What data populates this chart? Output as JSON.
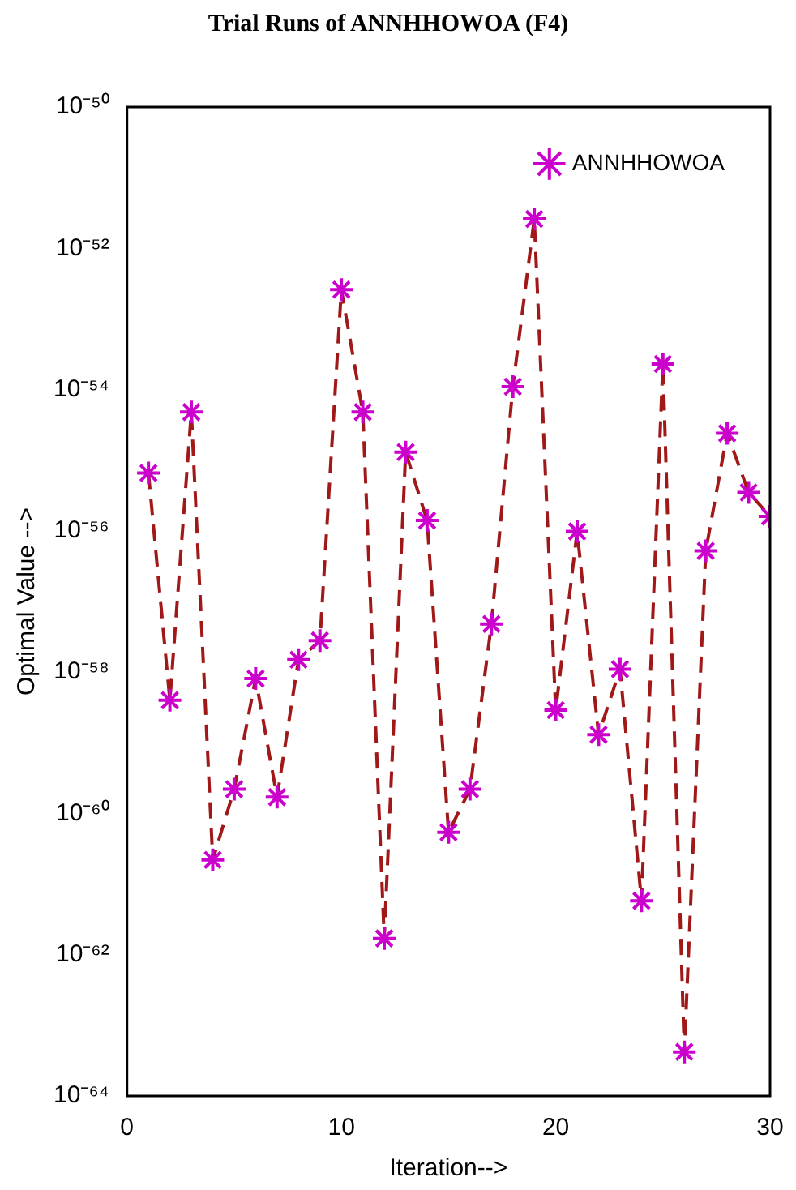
{
  "chart_data": {
    "type": "line",
    "title": "Trial Runs of ANNHHOWOA (F4)",
    "xlabel": "Iteration-->",
    "ylabel": "Optimal Value -->",
    "x": [
      1,
      2,
      3,
      4,
      5,
      6,
      7,
      8,
      9,
      10,
      11,
      12,
      13,
      14,
      15,
      16,
      17,
      18,
      19,
      20,
      21,
      22,
      23,
      24,
      25,
      26,
      27,
      28,
      29,
      30
    ],
    "series": [
      {
        "name": "ANNHHOWOA",
        "color": "#a01818",
        "colors": [
          "#cc00cc",
          "#cc00cc",
          "#cc00cc",
          "#cc00cc",
          "#cc00cc",
          "#cc00cc",
          "#cc00cc",
          "#cc00cc",
          "#cc00cc",
          "#cc00cc",
          "#cc00cc",
          "#cc00cc",
          "#cc00cc",
          "#cc00cc",
          "#cc00cc",
          "#cc00cc",
          "#cc00cc",
          "#cc00cc",
          "#cc00cc",
          "#cc00cc",
          "#cc00cc",
          "#cc00cc",
          "#cc00cc",
          "#cc00cc",
          "#cc00cc",
          "#cc00cc",
          "#cc00cc",
          "#cc00cc",
          "#cc00cc",
          "#cc00cc"
        ],
        "values": [
          6.6e-56,
          4e-59,
          4.8e-55,
          2.2e-61,
          2.2e-60,
          8.1e-59,
          1.7e-60,
          1.5e-58,
          2.8e-58,
          2.6e-53,
          4.8e-55,
          1.7e-62,
          1.3e-55,
          1.4e-56,
          5.4e-61,
          2.2e-60,
          4.8e-58,
          1.1e-54,
          2.6e-52,
          2.9e-59,
          9.8e-57,
          1.3e-59,
          1.1e-58,
          5.8e-62,
          2.3e-54,
          4.2e-64,
          5.2e-57,
          2.4e-55,
          3.5e-56,
          1.6e-56
        ]
      }
    ],
    "xlim": [
      0,
      30
    ],
    "xticks": [
      0,
      10,
      20,
      30
    ],
    "ylim": [
      1e-64,
      1e-50
    ],
    "yticks": [
      {
        "value": 1e-64,
        "label": "10⁻⁶⁴"
      },
      {
        "value": 1e-62,
        "label": "10⁻⁶²"
      },
      {
        "value": 1e-60,
        "label": "10⁻⁶⁰"
      },
      {
        "value": 1e-58,
        "label": "10⁻⁵⁸"
      },
      {
        "value": 1e-56,
        "label": "10⁻⁵⁶"
      },
      {
        "value": 1e-54,
        "label": "10⁻⁵⁴"
      },
      {
        "value": 1e-52,
        "label": "10⁻⁵²"
      },
      {
        "value": 1e-50,
        "label": "10⁻⁵⁰"
      }
    ],
    "log": true,
    "grid": false,
    "legend": "top right",
    "marker": "cross",
    "line_style": "dashed"
  }
}
